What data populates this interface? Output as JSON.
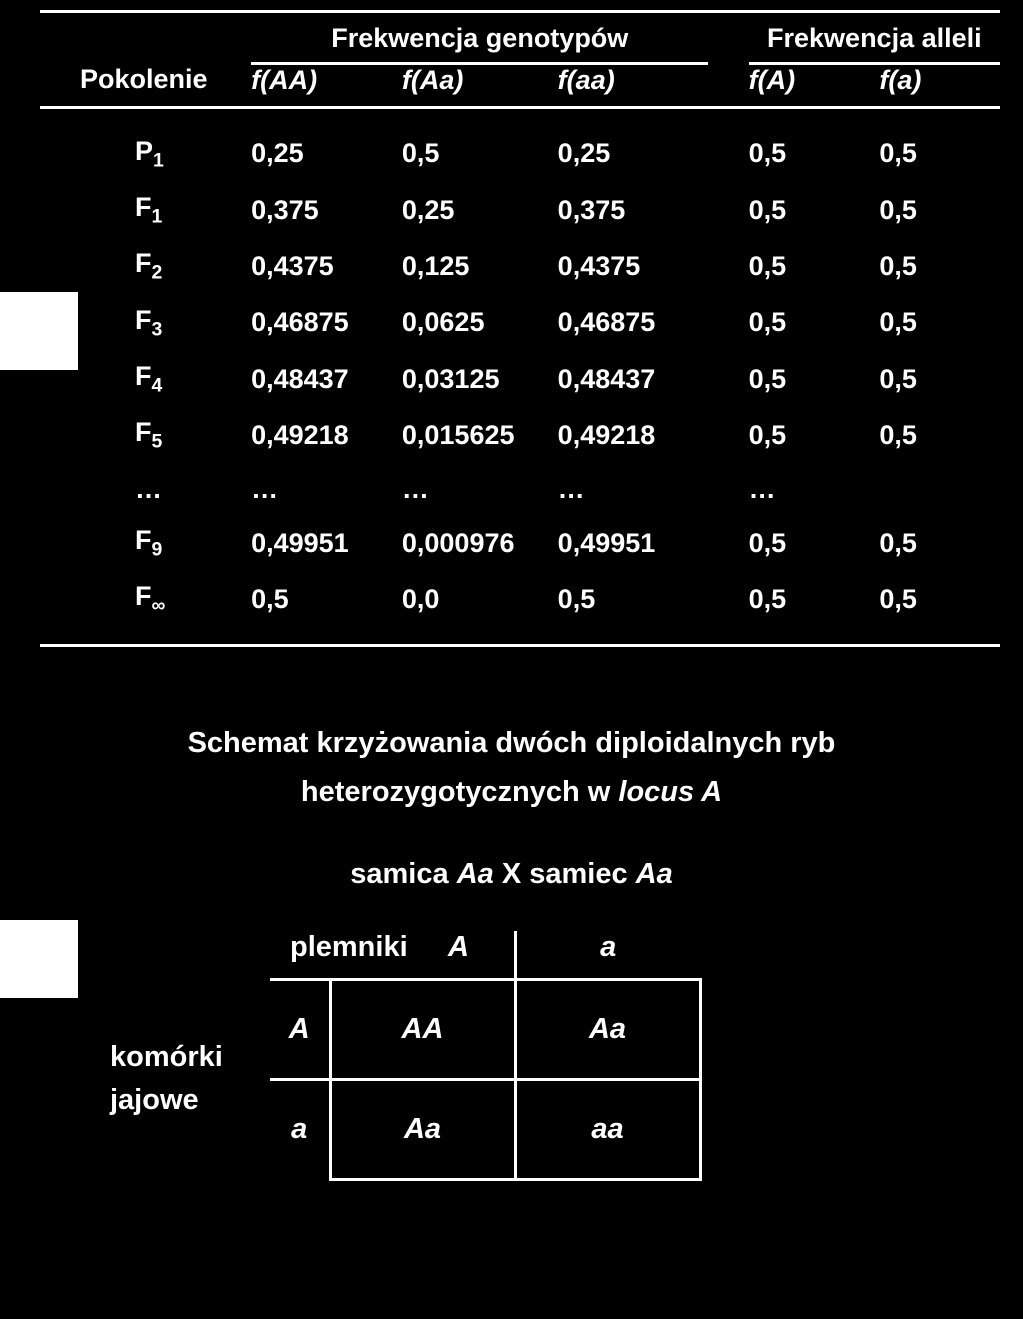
{
  "table": {
    "group_genotypes": "Frekwencja genotypów",
    "group_alleles": "Frekwencja alleli",
    "header_generation": "Pokolenie",
    "col_fAA": "f(AA)",
    "col_fAa": "f(Aa)",
    "col_faa": "f(aa)",
    "col_fA": "f(A)",
    "col_fa": "f(a)",
    "rows": [
      {
        "gen_base": "P",
        "gen_sub": "1",
        "fAA": "0,25",
        "fAa": "0,5",
        "faa": "0,25",
        "fA": "0,5",
        "fa": "0,5"
      },
      {
        "gen_base": "F",
        "gen_sub": "1",
        "fAA": "0,375",
        "fAa": "0,25",
        "faa": "0,375",
        "fA": "0,5",
        "fa": "0,5"
      },
      {
        "gen_base": "F",
        "gen_sub": "2",
        "fAA": "0,4375",
        "fAa": "0,125",
        "faa": "0,4375",
        "fA": "0,5",
        "fa": "0,5"
      },
      {
        "gen_base": "F",
        "gen_sub": "3",
        "fAA": "0,46875",
        "fAa": "0,0625",
        "faa": "0,46875",
        "fA": "0,5",
        "fa": "0,5"
      },
      {
        "gen_base": "F",
        "gen_sub": "4",
        "fAA": "0,48437",
        "fAa": "0,03125",
        "faa": "0,48437",
        "fA": "0,5",
        "fa": "0,5"
      },
      {
        "gen_base": "F",
        "gen_sub": "5",
        "fAA": "0,49218",
        "fAa": "0,015625",
        "faa": "0,49218",
        "fA": "0,5",
        "fa": "0,5"
      },
      {
        "gen_base": "…",
        "gen_sub": "",
        "fAA": "…",
        "fAa": "…",
        "faa": "…",
        "fA": "…",
        "fa": ""
      },
      {
        "gen_base": "F",
        "gen_sub": "9",
        "fAA": "0,49951",
        "fAa": "0,000976",
        "faa": "0,49951",
        "fA": "0,5",
        "fa": "0,5"
      },
      {
        "gen_base": "F",
        "gen_sub": "∞",
        "fAA": "0,5",
        "fAa": "0,0",
        "faa": "0,5",
        "fA": "0,5",
        "fa": "0,5"
      }
    ]
  },
  "diagram": {
    "title_line1": "Schemat krzyżowania dwóch diploidalnych ryb",
    "title_line2_a": "heterozygotycznych w ",
    "title_line2_b": "locus A",
    "cross_female": "samica ",
    "cross_geno_f": "Aa",
    "cross_x": "  X  ",
    "cross_male": "samiec ",
    "cross_geno_m": "Aa",
    "sperm_label": "plemniki",
    "egg_label_l1": "komórki",
    "egg_label_l2": "jajowe",
    "allele_A": "A",
    "allele_a": "a",
    "cell_AA": "AA",
    "cell_Aa": "Aa",
    "cell_aa": "aa"
  },
  "style": {
    "background": "#000000",
    "text_color": "#ffffff",
    "rule_color": "#ffffff",
    "marker_color": "#ffffff"
  }
}
